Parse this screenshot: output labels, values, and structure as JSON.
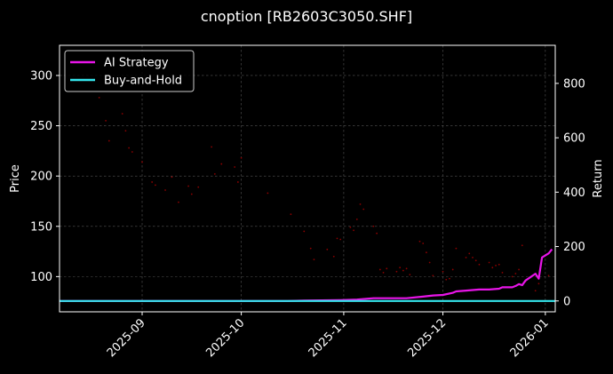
{
  "chart_data": {
    "type": "line",
    "title": "cnoption [RB2603C3050.SHF]",
    "ylabel_left": "Price",
    "ylabel_right": "Return",
    "x_ticks": [
      "2025-09",
      "2025-10",
      "2025-11",
      "2025-12",
      "2026-01"
    ],
    "x_tick_dates": [
      "2025-09-01",
      "2025-10-01",
      "2025-11-01",
      "2025-12-01",
      "2026-01-01"
    ],
    "xlim": [
      "2025-08-07",
      "2026-01-04"
    ],
    "ylim_left": [
      65,
      330
    ],
    "ylim_right": [
      -40,
      940
    ],
    "y_ticks_left": [
      100,
      150,
      200,
      250,
      300
    ],
    "y_ticks_right": [
      0,
      200,
      400,
      600,
      800
    ],
    "grid": true,
    "legend_position": "top-left",
    "price_scatter_color": "#8b0000",
    "price_points": [
      {
        "x": "2025-08-19",
        "y": 278
      },
      {
        "x": "2025-08-21",
        "y": 255
      },
      {
        "x": "2025-08-22",
        "y": 235
      },
      {
        "x": "2025-08-26",
        "y": 262
      },
      {
        "x": "2025-08-27",
        "y": 245
      },
      {
        "x": "2025-08-28",
        "y": 228
      },
      {
        "x": "2025-08-29",
        "y": 224
      },
      {
        "x": "2025-09-01",
        "y": 214
      },
      {
        "x": "2025-09-04",
        "y": 194
      },
      {
        "x": "2025-09-05",
        "y": 191
      },
      {
        "x": "2025-09-08",
        "y": 186
      },
      {
        "x": "2025-09-10",
        "y": 199
      },
      {
        "x": "2025-09-12",
        "y": 174
      },
      {
        "x": "2025-09-15",
        "y": 190
      },
      {
        "x": "2025-09-16",
        "y": 182
      },
      {
        "x": "2025-09-18",
        "y": 189
      },
      {
        "x": "2025-09-22",
        "y": 229
      },
      {
        "x": "2025-09-23",
        "y": 202
      },
      {
        "x": "2025-09-25",
        "y": 212
      },
      {
        "x": "2025-09-29",
        "y": 209
      },
      {
        "x": "2025-09-30",
        "y": 194
      },
      {
        "x": "2025-10-01",
        "y": 218
      },
      {
        "x": "2025-10-09",
        "y": 183
      },
      {
        "x": "2025-10-16",
        "y": 162
      },
      {
        "x": "2025-10-20",
        "y": 145
      },
      {
        "x": "2025-10-22",
        "y": 128
      },
      {
        "x": "2025-10-23",
        "y": 117
      },
      {
        "x": "2025-10-27",
        "y": 127
      },
      {
        "x": "2025-10-29",
        "y": 120
      },
      {
        "x": "2025-10-30",
        "y": 138
      },
      {
        "x": "2025-10-31",
        "y": 137
      },
      {
        "x": "2025-11-03",
        "y": 149
      },
      {
        "x": "2025-11-04",
        "y": 146
      },
      {
        "x": "2025-11-05",
        "y": 157
      },
      {
        "x": "2025-11-06",
        "y": 172
      },
      {
        "x": "2025-11-07",
        "y": 167
      },
      {
        "x": "2025-11-10",
        "y": 150
      },
      {
        "x": "2025-11-11",
        "y": 143
      },
      {
        "x": "2025-11-12",
        "y": 107
      },
      {
        "x": "2025-11-13",
        "y": 104
      },
      {
        "x": "2025-11-14",
        "y": 108
      },
      {
        "x": "2025-11-17",
        "y": 105
      },
      {
        "x": "2025-11-18",
        "y": 109
      },
      {
        "x": "2025-11-19",
        "y": 106
      },
      {
        "x": "2025-11-20",
        "y": 108
      },
      {
        "x": "2025-11-21",
        "y": 102
      },
      {
        "x": "2025-11-24",
        "y": 135
      },
      {
        "x": "2025-11-25",
        "y": 133
      },
      {
        "x": "2025-11-26",
        "y": 124
      },
      {
        "x": "2025-11-27",
        "y": 114
      },
      {
        "x": "2025-11-28",
        "y": 101
      },
      {
        "x": "2025-12-01",
        "y": 105
      },
      {
        "x": "2025-12-02",
        "y": 97
      },
      {
        "x": "2025-12-03",
        "y": 98
      },
      {
        "x": "2025-12-04",
        "y": 107
      },
      {
        "x": "2025-12-05",
        "y": 128
      },
      {
        "x": "2025-12-08",
        "y": 119
      },
      {
        "x": "2025-12-09",
        "y": 123
      },
      {
        "x": "2025-12-10",
        "y": 119
      },
      {
        "x": "2025-12-11",
        "y": 116
      },
      {
        "x": "2025-12-12",
        "y": 112
      },
      {
        "x": "2025-12-15",
        "y": 114
      },
      {
        "x": "2025-12-16",
        "y": 109
      },
      {
        "x": "2025-12-17",
        "y": 111
      },
      {
        "x": "2025-12-18",
        "y": 112
      },
      {
        "x": "2025-12-19",
        "y": 104
      },
      {
        "x": "2025-12-22",
        "y": 100
      },
      {
        "x": "2025-12-23",
        "y": 103
      },
      {
        "x": "2025-12-24",
        "y": 107
      },
      {
        "x": "2025-12-25",
        "y": 131
      },
      {
        "x": "2025-12-26",
        "y": 95
      },
      {
        "x": "2025-12-29",
        "y": 86
      },
      {
        "x": "2025-12-30",
        "y": 93
      },
      {
        "x": "2026-01-02",
        "y": 101
      }
    ],
    "series": [
      {
        "name": "AI Strategy",
        "color": "#e815e8",
        "axis": "right",
        "points": [
          {
            "x": "2025-08-07",
            "y": 0
          },
          {
            "x": "2025-09-15",
            "y": 0
          },
          {
            "x": "2025-10-15",
            "y": 0
          },
          {
            "x": "2025-10-20",
            "y": 1
          },
          {
            "x": "2025-10-31",
            "y": 3
          },
          {
            "x": "2025-11-05",
            "y": 5
          },
          {
            "x": "2025-11-10",
            "y": 10
          },
          {
            "x": "2025-11-20",
            "y": 10
          },
          {
            "x": "2025-11-25",
            "y": 16
          },
          {
            "x": "2025-11-28",
            "y": 20
          },
          {
            "x": "2025-12-01",
            "y": 22
          },
          {
            "x": "2025-12-04",
            "y": 30
          },
          {
            "x": "2025-12-05",
            "y": 35
          },
          {
            "x": "2025-12-08",
            "y": 38
          },
          {
            "x": "2025-12-10",
            "y": 40
          },
          {
            "x": "2025-12-12",
            "y": 42
          },
          {
            "x": "2025-12-15",
            "y": 42
          },
          {
            "x": "2025-12-18",
            "y": 45
          },
          {
            "x": "2025-12-19",
            "y": 50
          },
          {
            "x": "2025-12-22",
            "y": 50
          },
          {
            "x": "2025-12-23",
            "y": 55
          },
          {
            "x": "2025-12-24",
            "y": 62
          },
          {
            "x": "2025-12-25",
            "y": 58
          },
          {
            "x": "2025-12-26",
            "y": 75
          },
          {
            "x": "2025-12-29",
            "y": 100
          },
          {
            "x": "2025-12-30",
            "y": 82
          },
          {
            "x": "2025-12-31",
            "y": 160
          },
          {
            "x": "2026-01-02",
            "y": 175
          },
          {
            "x": "2026-01-03",
            "y": 190
          }
        ]
      },
      {
        "name": "Buy-and-Hold",
        "color": "#34e5ec",
        "axis": "right",
        "points": [
          {
            "x": "2025-08-07",
            "y": 0
          },
          {
            "x": "2026-01-04",
            "y": 0
          }
        ]
      }
    ]
  }
}
